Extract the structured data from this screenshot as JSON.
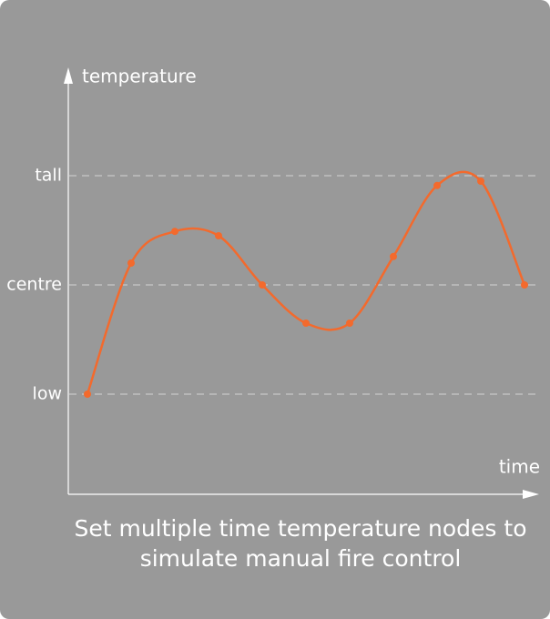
{
  "chart_data": {
    "type": "line",
    "y_label": "temperature",
    "x_label": "time",
    "caption": [
      "Set multiple time temperature nodes to",
      "simulate manual fire control"
    ],
    "categories": [
      null,
      null,
      null,
      null,
      null,
      null,
      null,
      null,
      null,
      null,
      null
    ],
    "series": [
      {
        "color": "#f36a2d",
        "values": [
          0,
          1.2,
          1.49,
          1.45,
          1.0,
          0.65,
          0.65,
          1.26,
          1.91,
          1.95,
          1.0
        ]
      }
    ],
    "ylim": [
      -0.9,
      2.9
    ],
    "yticks": [
      {
        "value": 0,
        "label": "low"
      },
      {
        "value": 1,
        "label": "centre"
      },
      {
        "value": 2,
        "label": "tall"
      }
    ],
    "grid": true
  }
}
